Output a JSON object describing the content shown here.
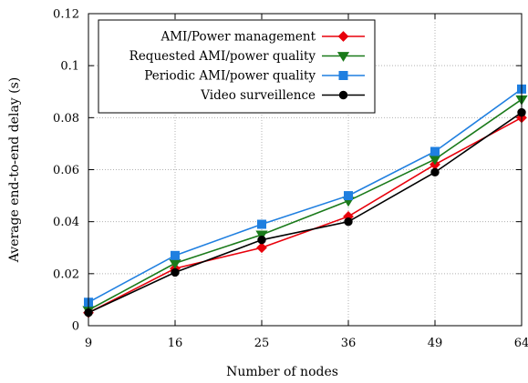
{
  "chart_data": {
    "type": "line",
    "xlabel": "Number of nodes",
    "ylabel": "Average end-to-end delay (s)",
    "categories": [
      "9",
      "16",
      "25",
      "36",
      "49",
      "64"
    ],
    "ylim": [
      0,
      0.12
    ],
    "yticks": [
      "0",
      "0.02",
      "0.04",
      "0.06",
      "0.08",
      "0.1",
      "0.12"
    ],
    "grid": true,
    "legend_position": "top-right",
    "series": [
      {
        "name": "AMI/Power management",
        "color": "#e8000b",
        "marker": "diamond",
        "values": [
          0.005,
          0.022,
          0.03,
          0.042,
          0.062,
          0.08
        ]
      },
      {
        "name": "Requested AMI/power quality",
        "color": "#1a7a1a",
        "marker": "triangle-down",
        "values": [
          0.006,
          0.024,
          0.035,
          0.048,
          0.064,
          0.087
        ]
      },
      {
        "name": "Periodic AMI/power quality",
        "color": "#1f7fe0",
        "marker": "square",
        "values": [
          0.009,
          0.027,
          0.039,
          0.05,
          0.067,
          0.091
        ]
      },
      {
        "name": "Video surveillence",
        "color": "#000000",
        "marker": "circle",
        "values": [
          0.005,
          0.0205,
          0.033,
          0.04,
          0.059,
          0.082
        ]
      }
    ]
  }
}
